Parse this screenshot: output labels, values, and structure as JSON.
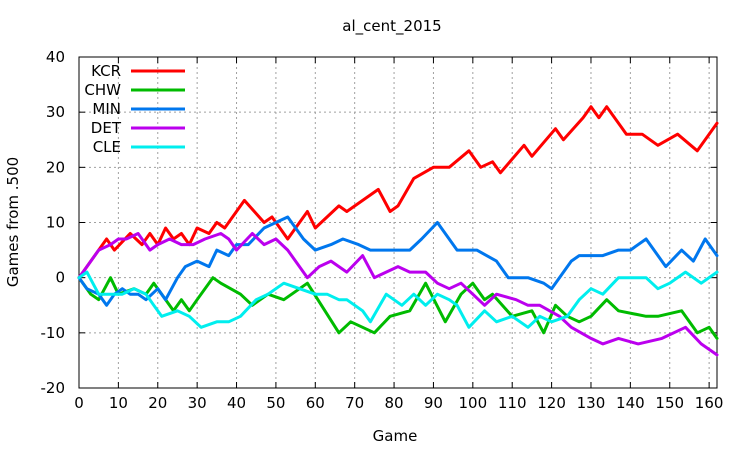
{
  "chart_data": {
    "type": "line",
    "title": "al_cent_2015",
    "xlabel": "Game",
    "ylabel": "Games from .500",
    "xlim": [
      0,
      162
    ],
    "ylim": [
      -20,
      40
    ],
    "x_ticks": [
      0,
      10,
      20,
      30,
      40,
      50,
      60,
      70,
      80,
      90,
      100,
      110,
      120,
      130,
      140,
      150,
      160
    ],
    "y_ticks": [
      -20,
      -10,
      0,
      10,
      20,
      30,
      40
    ],
    "grid": true,
    "legend_position": "top-left",
    "series": [
      {
        "name": "KCR",
        "color": "#ff0000",
        "points": [
          [
            0,
            0
          ],
          [
            3,
            3
          ],
          [
            7,
            7
          ],
          [
            9,
            5
          ],
          [
            13,
            8
          ],
          [
            16,
            6
          ],
          [
            18,
            8
          ],
          [
            20,
            6
          ],
          [
            22,
            9
          ],
          [
            24,
            7
          ],
          [
            26,
            8
          ],
          [
            28,
            6
          ],
          [
            30,
            9
          ],
          [
            33,
            8
          ],
          [
            35,
            10
          ],
          [
            37,
            9
          ],
          [
            42,
            14
          ],
          [
            47,
            10
          ],
          [
            49,
            11
          ],
          [
            51,
            9
          ],
          [
            53,
            7
          ],
          [
            58,
            12
          ],
          [
            60,
            9
          ],
          [
            66,
            13
          ],
          [
            68,
            12
          ],
          [
            76,
            16
          ],
          [
            79,
            12
          ],
          [
            81,
            13
          ],
          [
            85,
            18
          ],
          [
            90,
            20
          ],
          [
            94,
            20
          ],
          [
            99,
            23
          ],
          [
            102,
            20
          ],
          [
            105,
            21
          ],
          [
            107,
            19
          ],
          [
            113,
            24
          ],
          [
            115,
            22
          ],
          [
            121,
            27
          ],
          [
            123,
            25
          ],
          [
            128,
            29
          ],
          [
            130,
            31
          ],
          [
            132,
            29
          ],
          [
            134,
            31
          ],
          [
            139,
            26
          ],
          [
            143,
            26
          ],
          [
            147,
            24
          ],
          [
            152,
            26
          ],
          [
            157,
            23
          ],
          [
            162,
            28
          ]
        ]
      },
      {
        "name": "CHW",
        "color": "#00bb00",
        "points": [
          [
            0,
            0
          ],
          [
            3,
            -3
          ],
          [
            5,
            -4
          ],
          [
            8,
            0
          ],
          [
            10,
            -3
          ],
          [
            14,
            -2
          ],
          [
            17,
            -3
          ],
          [
            19,
            -1
          ],
          [
            21,
            -3
          ],
          [
            24,
            -6
          ],
          [
            26,
            -4
          ],
          [
            28,
            -6
          ],
          [
            30,
            -4
          ],
          [
            34,
            0
          ],
          [
            36,
            -1
          ],
          [
            41,
            -3
          ],
          [
            44,
            -5
          ],
          [
            48,
            -3
          ],
          [
            52,
            -4
          ],
          [
            58,
            -1
          ],
          [
            66,
            -10
          ],
          [
            69,
            -8
          ],
          [
            72,
            -9
          ],
          [
            75,
            -10
          ],
          [
            79,
            -7
          ],
          [
            84,
            -6
          ],
          [
            88,
            -1
          ],
          [
            93,
            -8
          ],
          [
            97,
            -3
          ],
          [
            100,
            -1
          ],
          [
            103,
            -4
          ],
          [
            105,
            -3
          ],
          [
            110,
            -7
          ],
          [
            115,
            -6
          ],
          [
            118,
            -10
          ],
          [
            121,
            -5
          ],
          [
            124,
            -7
          ],
          [
            127,
            -8
          ],
          [
            130,
            -7
          ],
          [
            134,
            -4
          ],
          [
            137,
            -6
          ],
          [
            144,
            -7
          ],
          [
            147,
            -7
          ],
          [
            153,
            -6
          ],
          [
            157,
            -10
          ],
          [
            160,
            -9
          ],
          [
            162,
            -11
          ]
        ]
      },
      {
        "name": "MIN",
        "color": "#0077ee",
        "points": [
          [
            0,
            0
          ],
          [
            2,
            -2
          ],
          [
            5,
            -3
          ],
          [
            7,
            -5
          ],
          [
            9,
            -3
          ],
          [
            11,
            -2
          ],
          [
            13,
            -3
          ],
          [
            15,
            -3
          ],
          [
            17,
            -4
          ],
          [
            20,
            -2
          ],
          [
            22,
            -4
          ],
          [
            25,
            0
          ],
          [
            27,
            2
          ],
          [
            30,
            3
          ],
          [
            33,
            2
          ],
          [
            35,
            5
          ],
          [
            38,
            4
          ],
          [
            40,
            6
          ],
          [
            43,
            6
          ],
          [
            47,
            9
          ],
          [
            50,
            10
          ],
          [
            53,
            11
          ],
          [
            57,
            7
          ],
          [
            60,
            5
          ],
          [
            64,
            6
          ],
          [
            67,
            7
          ],
          [
            71,
            6
          ],
          [
            74,
            5
          ],
          [
            78,
            5
          ],
          [
            84,
            5
          ],
          [
            87,
            7
          ],
          [
            91,
            10
          ],
          [
            96,
            5
          ],
          [
            101,
            5
          ],
          [
            106,
            3
          ],
          [
            109,
            0
          ],
          [
            114,
            0
          ],
          [
            118,
            -1
          ],
          [
            120,
            -2
          ],
          [
            125,
            3
          ],
          [
            127,
            4
          ],
          [
            133,
            4
          ],
          [
            137,
            5
          ],
          [
            140,
            5
          ],
          [
            144,
            7
          ],
          [
            149,
            2
          ],
          [
            153,
            5
          ],
          [
            156,
            3
          ],
          [
            159,
            7
          ],
          [
            162,
            4
          ]
        ]
      },
      {
        "name": "DET",
        "color": "#bb00ee",
        "points": [
          [
            0,
            0
          ],
          [
            5,
            5
          ],
          [
            8,
            6
          ],
          [
            10,
            7
          ],
          [
            12,
            7
          ],
          [
            15,
            8
          ],
          [
            18,
            5
          ],
          [
            20,
            6
          ],
          [
            23,
            7
          ],
          [
            26,
            6
          ],
          [
            29,
            6
          ],
          [
            32,
            7
          ],
          [
            36,
            8
          ],
          [
            38,
            7
          ],
          [
            40,
            5
          ],
          [
            44,
            8
          ],
          [
            47,
            6
          ],
          [
            50,
            7
          ],
          [
            53,
            5
          ],
          [
            58,
            0
          ],
          [
            61,
            2
          ],
          [
            64,
            3
          ],
          [
            68,
            1
          ],
          [
            72,
            4
          ],
          [
            75,
            0
          ],
          [
            78,
            1
          ],
          [
            81,
            2
          ],
          [
            84,
            1
          ],
          [
            88,
            1
          ],
          [
            91,
            -1
          ],
          [
            94,
            -2
          ],
          [
            97,
            -1
          ],
          [
            100,
            -3
          ],
          [
            103,
            -5
          ],
          [
            106,
            -3
          ],
          [
            111,
            -4
          ],
          [
            114,
            -5
          ],
          [
            117,
            -5
          ],
          [
            122,
            -7
          ],
          [
            125,
            -9
          ],
          [
            130,
            -11
          ],
          [
            133,
            -12
          ],
          [
            137,
            -11
          ],
          [
            142,
            -12
          ],
          [
            148,
            -11
          ],
          [
            154,
            -9
          ],
          [
            158,
            -12
          ],
          [
            162,
            -14
          ]
        ]
      },
      {
        "name": "CLE",
        "color": "#00eeee",
        "points": [
          [
            0,
            0
          ],
          [
            2,
            1
          ],
          [
            5,
            -3
          ],
          [
            8,
            -3
          ],
          [
            11,
            -3
          ],
          [
            14,
            -2
          ],
          [
            17,
            -3
          ],
          [
            19,
            -5
          ],
          [
            21,
            -7
          ],
          [
            25,
            -6
          ],
          [
            28,
            -7
          ],
          [
            31,
            -9
          ],
          [
            35,
            -8
          ],
          [
            38,
            -8
          ],
          [
            41,
            -7
          ],
          [
            45,
            -4
          ],
          [
            48,
            -3
          ],
          [
            52,
            -1
          ],
          [
            56,
            -2
          ],
          [
            60,
            -3
          ],
          [
            63,
            -3
          ],
          [
            66,
            -4
          ],
          [
            68,
            -4
          ],
          [
            72,
            -6
          ],
          [
            74,
            -8
          ],
          [
            78,
            -3
          ],
          [
            82,
            -5
          ],
          [
            85,
            -3
          ],
          [
            88,
            -5
          ],
          [
            91,
            -3
          ],
          [
            94,
            -4
          ],
          [
            96,
            -5
          ],
          [
            99,
            -9
          ],
          [
            103,
            -6
          ],
          [
            106,
            -8
          ],
          [
            110,
            -7
          ],
          [
            114,
            -9
          ],
          [
            117,
            -7
          ],
          [
            120,
            -8
          ],
          [
            124,
            -7
          ],
          [
            127,
            -4
          ],
          [
            130,
            -2
          ],
          [
            133,
            -3
          ],
          [
            137,
            0
          ],
          [
            141,
            0
          ],
          [
            144,
            0
          ],
          [
            147,
            -2
          ],
          [
            150,
            -1
          ],
          [
            154,
            1
          ],
          [
            158,
            -1
          ],
          [
            162,
            1
          ]
        ]
      }
    ]
  }
}
